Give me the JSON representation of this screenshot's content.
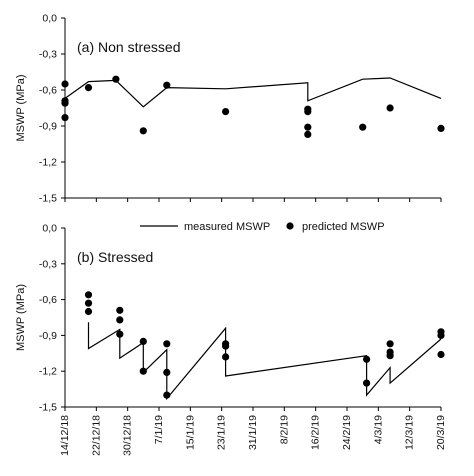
{
  "chart_data": [
    {
      "type": "line",
      "title": "(a) Non stressed",
      "ylabel": "MSWP (MPa)",
      "xlabel": "",
      "ylim": [
        -1.5,
        0.0
      ],
      "yticks": [
        "0,0",
        "-0,3",
        "-0,6",
        "-0,9",
        "-1,2",
        "-1,5"
      ],
      "grid": false,
      "series": [
        {
          "name": "measured MSWP",
          "style": "line",
          "points": [
            [
              "2018-12-14",
              -0.67
            ],
            [
              "2018-12-20",
              -0.53
            ],
            [
              "2018-12-27",
              -0.52
            ],
            [
              "2019-01-03",
              -0.74
            ],
            [
              "2019-01-09",
              -0.58
            ],
            [
              "2019-01-24",
              -0.59
            ],
            [
              "2019-02-14",
              -0.54
            ],
            [
              "2019-02-14",
              -0.69
            ],
            [
              "2019-02-28",
              -0.51
            ],
            [
              "2019-03-07",
              -0.5
            ],
            [
              "2019-03-20",
              -0.67
            ]
          ]
        },
        {
          "name": "predicted MSWP",
          "style": "scatter",
          "points": [
            [
              "2018-12-14",
              -0.55
            ],
            [
              "2018-12-14",
              -0.69
            ],
            [
              "2018-12-14",
              -0.71
            ],
            [
              "2018-12-14",
              -0.83
            ],
            [
              "2018-12-20",
              -0.58
            ],
            [
              "2018-12-27",
              -0.51
            ],
            [
              "2019-01-03",
              -0.94
            ],
            [
              "2019-01-09",
              -0.56
            ],
            [
              "2019-01-24",
              -0.78
            ],
            [
              "2019-02-14",
              -0.76
            ],
            [
              "2019-02-14",
              -0.78
            ],
            [
              "2019-02-14",
              -0.91
            ],
            [
              "2019-02-14",
              -0.97
            ],
            [
              "2019-02-28",
              -0.91
            ],
            [
              "2019-03-07",
              -0.75
            ],
            [
              "2019-03-20",
              -0.92
            ]
          ]
        }
      ]
    },
    {
      "type": "line",
      "title": "(b) Stressed",
      "ylabel": "MSWP (MPa)",
      "xlabel": "",
      "ylim": [
        -1.5,
        0.0
      ],
      "yticks": [
        "0,0",
        "-0,3",
        "-0,6",
        "-0,9",
        "-1,2",
        "-1,5"
      ],
      "xticks": [
        "2018-12-14",
        "2018-12-22",
        "2018-12-30",
        "2019-01-07",
        "2019-01-15",
        "2019-01-23",
        "2019-01-31",
        "2019-02-08",
        "2019-02-16",
        "2019-02-24",
        "2019-03-04",
        "2019-03-12",
        "2019-03-20"
      ],
      "xtick_labels": [
        "14/12/18",
        "22/12/18",
        "30/12/18",
        "7/1/19",
        "15/1/19",
        "23/1/19",
        "31/1/19",
        "8/2/19",
        "16/2/19",
        "24/2/19",
        "4/3/19",
        "12/3/19",
        "20/3/19"
      ],
      "legend": {
        "placement": "top-center",
        "entries": [
          "measured MSWP",
          "predicted MSWP"
        ]
      },
      "grid": false,
      "series": [
        {
          "name": "measured MSWP",
          "style": "line",
          "points": [
            [
              "2018-12-20",
              -0.79
            ],
            [
              "2018-12-20",
              -1.01
            ],
            [
              "2018-12-28",
              -0.85
            ],
            [
              "2018-12-28",
              -1.09
            ],
            [
              "2019-01-03",
              -0.96
            ],
            [
              "2019-01-03",
              -1.21
            ],
            [
              "2019-01-09",
              -1.02
            ],
            [
              "2019-01-09",
              -1.43
            ],
            [
              "2019-01-24",
              -0.84
            ],
            [
              "2019-01-24",
              -1.24
            ],
            [
              "2019-03-01",
              -1.07
            ],
            [
              "2019-03-01",
              -1.4
            ],
            [
              "2019-03-07",
              -1.17
            ],
            [
              "2019-03-07",
              -1.3
            ],
            [
              "2019-03-20",
              -0.93
            ]
          ]
        },
        {
          "name": "predicted MSWP",
          "style": "scatter",
          "points": [
            [
              "2018-12-20",
              -0.56
            ],
            [
              "2018-12-20",
              -0.63
            ],
            [
              "2018-12-20",
              -0.7
            ],
            [
              "2018-12-28",
              -0.69
            ],
            [
              "2018-12-28",
              -0.77
            ],
            [
              "2018-12-28",
              -0.89
            ],
            [
              "2019-01-03",
              -0.95
            ],
            [
              "2019-01-03",
              -1.2
            ],
            [
              "2019-01-09",
              -0.97
            ],
            [
              "2019-01-09",
              -1.21
            ],
            [
              "2019-01-09",
              -1.4
            ],
            [
              "2019-01-24",
              -0.97
            ],
            [
              "2019-01-24",
              -0.99
            ],
            [
              "2019-01-24",
              -1.08
            ],
            [
              "2019-03-01",
              -1.1
            ],
            [
              "2019-03-01",
              -1.3
            ],
            [
              "2019-03-07",
              -0.97
            ],
            [
              "2019-03-07",
              -1.04
            ],
            [
              "2019-03-07",
              -1.07
            ],
            [
              "2019-03-20",
              -0.87
            ],
            [
              "2019-03-20",
              -0.9
            ],
            [
              "2019-03-20",
              -1.06
            ]
          ]
        }
      ]
    }
  ]
}
